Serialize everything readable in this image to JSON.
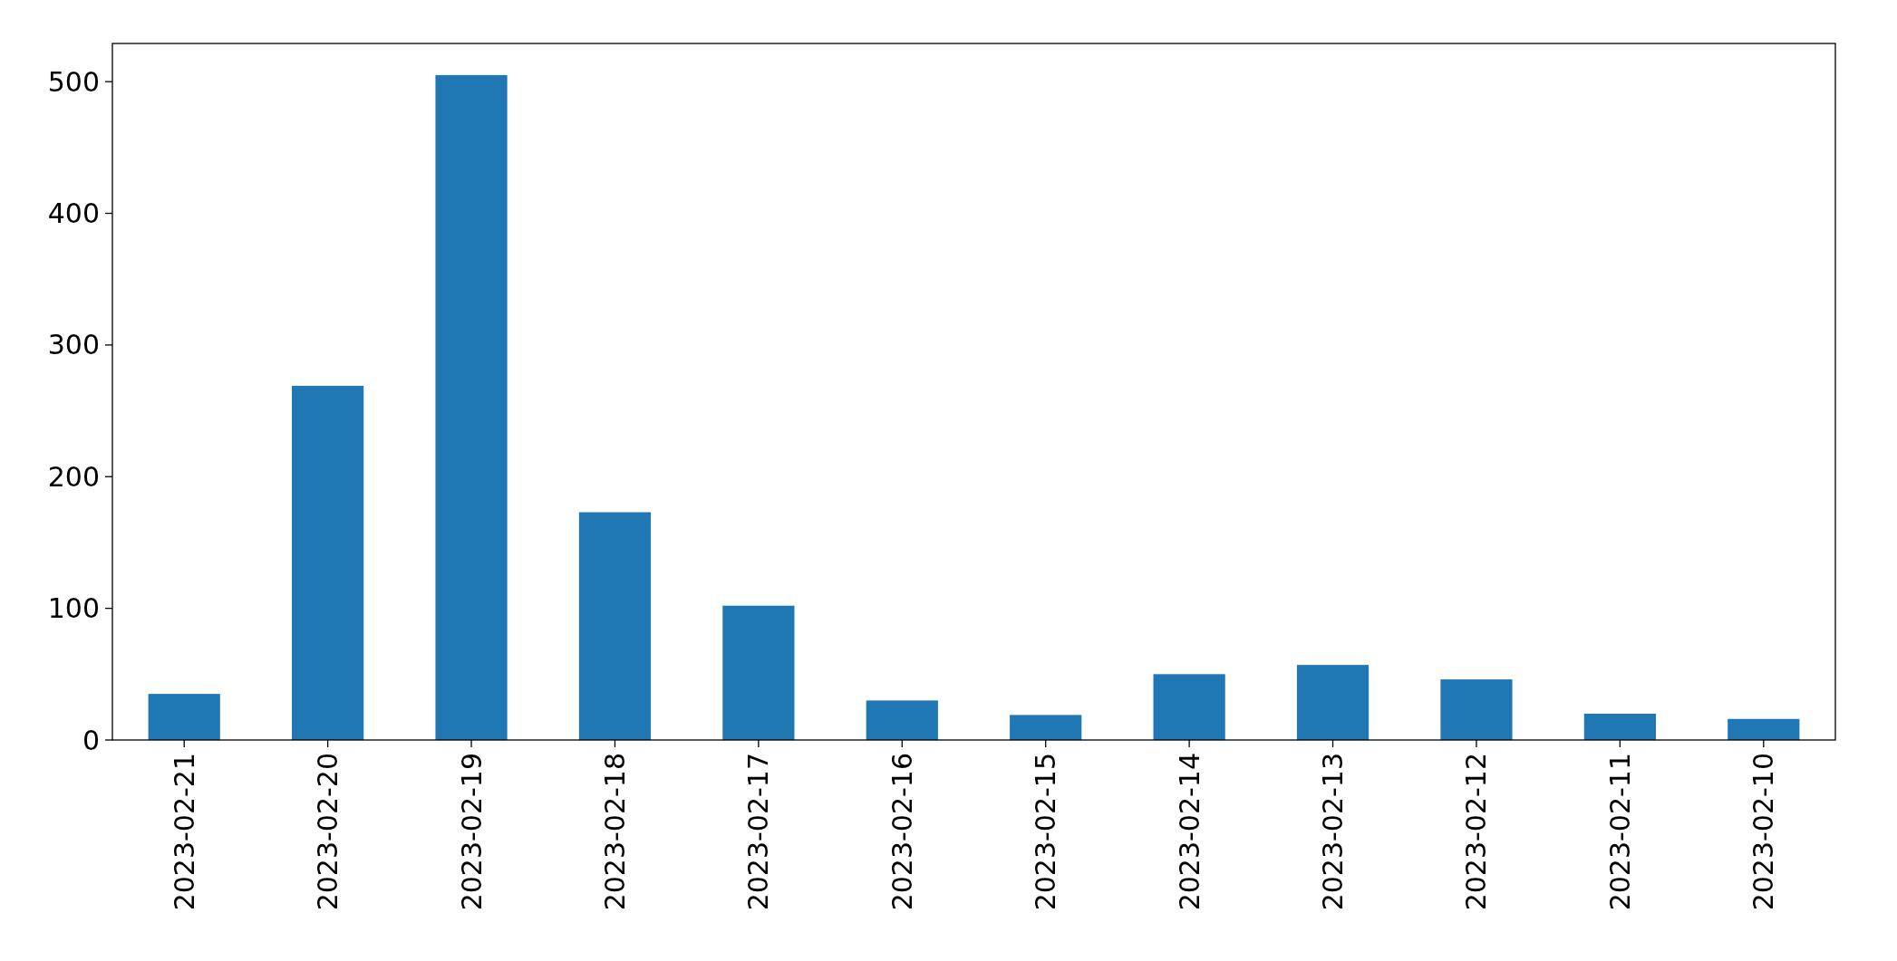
{
  "chart_data": {
    "type": "bar",
    "categories": [
      "2023-02-21",
      "2023-02-20",
      "2023-02-19",
      "2023-02-18",
      "2023-02-17",
      "2023-02-16",
      "2023-02-15",
      "2023-02-14",
      "2023-02-13",
      "2023-02-12",
      "2023-02-11",
      "2023-02-10"
    ],
    "values": [
      35,
      269,
      505,
      173,
      102,
      30,
      19,
      50,
      57,
      46,
      20,
      16
    ],
    "color": "#1f77b4",
    "ylim": [
      0,
      529
    ],
    "yticks": [
      0,
      100,
      200,
      300,
      400,
      500
    ],
    "grid": false
  }
}
